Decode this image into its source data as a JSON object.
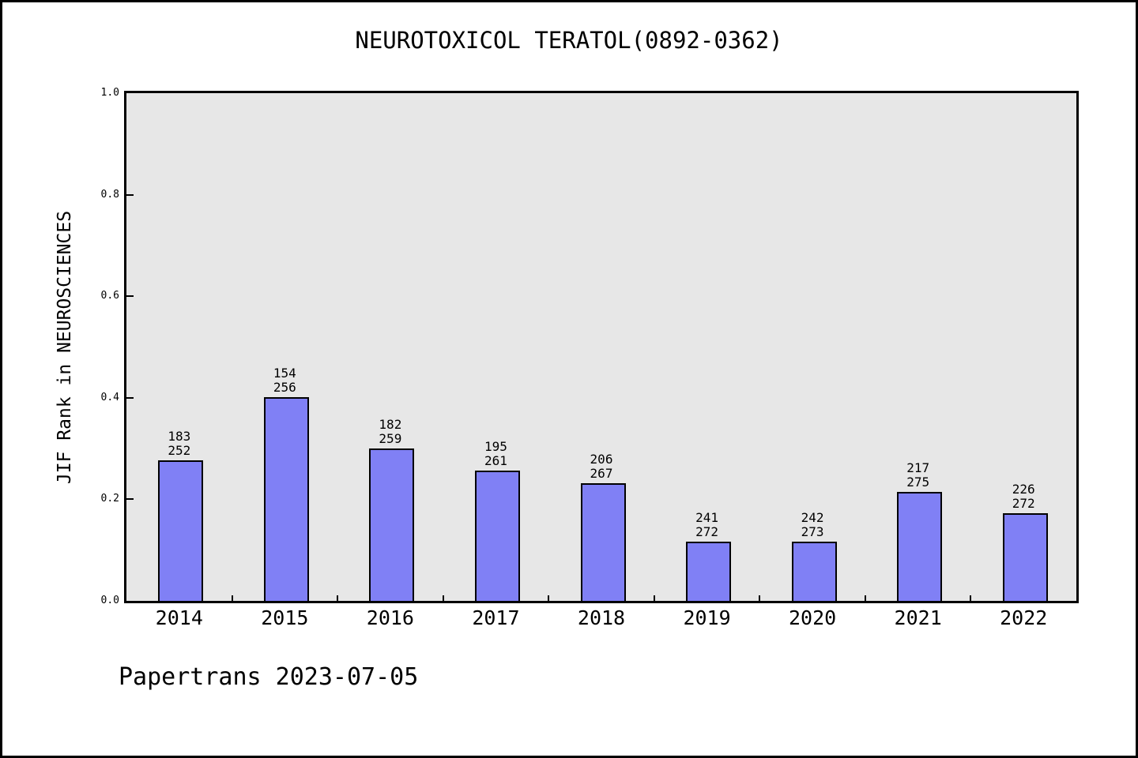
{
  "title": "NEUROTOXICOL TERATOL(0892-0362)",
  "footer": "Papertrans 2023-07-05",
  "colors": {
    "bar_fill": "#8080f5",
    "bar_edge": "#000000",
    "plot_background": "#e7e7e7",
    "frame": "#000000",
    "text": "#000000"
  },
  "chart_data": {
    "type": "bar",
    "title": "NEUROTOXICOL TERATOL(0892-0362)",
    "xlabel": "",
    "ylabel": "JIF Rank in NEUROSCIENCES",
    "ylim": [
      0.0,
      1.0
    ],
    "ytick_labels": [
      "1.0",
      "0.8",
      "0.6",
      "0.4",
      "0.2",
      "0.0"
    ],
    "ytick_values": [
      1.0,
      0.8,
      0.6,
      0.4,
      0.2,
      0.0
    ],
    "grid": false,
    "legend": false,
    "categories": [
      "2014",
      "2015",
      "2016",
      "2017",
      "2018",
      "2019",
      "2020",
      "2021",
      "2022"
    ],
    "bars": [
      {
        "year": "2014",
        "rank": 183,
        "total": 252,
        "value": 0.2738
      },
      {
        "year": "2015",
        "rank": 154,
        "total": 256,
        "value": 0.3984
      },
      {
        "year": "2016",
        "rank": 182,
        "total": 259,
        "value": 0.2973
      },
      {
        "year": "2017",
        "rank": 195,
        "total": 261,
        "value": 0.2529
      },
      {
        "year": "2018",
        "rank": 206,
        "total": 267,
        "value": 0.2285
      },
      {
        "year": "2019",
        "rank": 241,
        "total": 272,
        "value": 0.114
      },
      {
        "year": "2020",
        "rank": 242,
        "total": 273,
        "value": 0.1136
      },
      {
        "year": "2021",
        "rank": 217,
        "total": 275,
        "value": 0.2109
      },
      {
        "year": "2022",
        "rank": 226,
        "total": 272,
        "value": 0.1691
      }
    ],
    "bar_label_format": "rank over total, two lines above each bar"
  }
}
